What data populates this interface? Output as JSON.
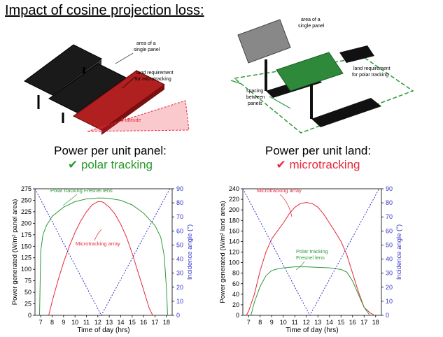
{
  "title": "Impact of cosine projection loss:",
  "left_illustration": {
    "callouts": [
      "area of a single panel",
      "land requirement for microtracking",
      "θ latitude"
    ]
  },
  "right_illustration": {
    "callouts": [
      "area of a single panel",
      "land requirement for polar tracking",
      "spacing between panels"
    ]
  },
  "left_heading": {
    "line1": "Power per unit panel:",
    "check": "✔",
    "line2": "polar tracking",
    "color": "#2a9a2a"
  },
  "right_heading": {
    "line1": "Power per unit land:",
    "check": "✔",
    "line2": "microtracking",
    "color": "#e8283a"
  },
  "chart_data": [
    {
      "type": "line",
      "xlabel": "Time of day (hrs)",
      "ylabel": "Power generated (W/m² panel area)",
      "y2label": "Incidence angle (°)",
      "xlim": [
        6.5,
        18.5
      ],
      "ylim": [
        0,
        275
      ],
      "y2lim": [
        0,
        90
      ],
      "xticks": [
        7,
        8,
        9,
        10,
        11,
        12,
        13,
        14,
        15,
        16,
        17,
        18
      ],
      "yticks": [
        0,
        25,
        50,
        75,
        100,
        125,
        150,
        175,
        200,
        225,
        250,
        275
      ],
      "y2ticks": [
        0,
        10,
        20,
        30,
        40,
        50,
        60,
        70,
        80,
        90
      ],
      "series": [
        {
          "name": "Polar tracking Fresnel lens",
          "color": "#2e9a3a",
          "x": [
            6.9,
            7.0,
            7.2,
            7.5,
            8,
            9,
            10,
            11,
            12,
            12.5,
            13,
            14,
            15,
            16,
            17,
            17.5,
            17.8,
            18.0,
            18.1
          ],
          "y": [
            0,
            140,
            175,
            195,
            215,
            235,
            247,
            253,
            255,
            255,
            254,
            250,
            240,
            222,
            195,
            170,
            130,
            60,
            0
          ]
        },
        {
          "name": "Microtracking array",
          "color": "#e8283a",
          "x": [
            7.7,
            8,
            8.5,
            9,
            9.5,
            10,
            10.5,
            11,
            11.5,
            12,
            12.3,
            12.5,
            13,
            13.5,
            14,
            14.5,
            15,
            15.5,
            16,
            16.5,
            16.8
          ],
          "y": [
            0,
            30,
            75,
            115,
            150,
            180,
            205,
            225,
            240,
            247,
            247,
            245,
            235,
            220,
            198,
            170,
            135,
            95,
            55,
            15,
            0
          ]
        },
        {
          "name": "",
          "color": "#3333cc",
          "axis": "y2",
          "dashed": true,
          "x": [
            6.5,
            12.3,
            18.3
          ],
          "y": [
            90,
            0,
            90
          ]
        }
      ],
      "annotations": [
        "Polar tracking Fresnel lens",
        "Microtracking array"
      ]
    },
    {
      "type": "line",
      "xlabel": "Time of day (hrs)",
      "ylabel": "Power generated (W/m² land area)",
      "y2label": "Incidence angle (°)",
      "xlim": [
        6.5,
        18.5
      ],
      "ylim": [
        0,
        240
      ],
      "y2lim": [
        0,
        90
      ],
      "xticks": [
        7,
        8,
        9,
        10,
        11,
        12,
        13,
        14,
        15,
        16,
        17,
        18
      ],
      "yticks": [
        0,
        20,
        40,
        60,
        80,
        100,
        120,
        140,
        160,
        180,
        200,
        220,
        240
      ],
      "y2ticks": [
        0,
        10,
        20,
        30,
        40,
        50,
        60,
        70,
        80,
        90
      ],
      "series": [
        {
          "name": "Microtracking array",
          "color": "#e8283a",
          "x": [
            6.8,
            7,
            7.5,
            8,
            8.5,
            9,
            9.5,
            10,
            10.5,
            11,
            11.5,
            12,
            12.5,
            13,
            13.5,
            14,
            14.5,
            15,
            15.5,
            16,
            16.5,
            17,
            17.5,
            17.9
          ],
          "y": [
            0,
            8,
            40,
            85,
            120,
            145,
            160,
            175,
            192,
            205,
            212,
            214,
            212,
            205,
            192,
            175,
            158,
            140,
            115,
            80,
            45,
            15,
            5,
            0
          ]
        },
        {
          "name": "Polar tracking Fresnel lens",
          "color": "#2e9a3a",
          "x": [
            7.2,
            7.5,
            8,
            8.5,
            9,
            9.5,
            10,
            11,
            12,
            13,
            14,
            15,
            15.5,
            16,
            16.5,
            17,
            17.5
          ],
          "y": [
            0,
            25,
            55,
            75,
            85,
            88,
            90,
            92,
            92,
            91,
            90,
            87,
            82,
            65,
            40,
            15,
            0
          ]
        },
        {
          "name": "",
          "color": "#3333cc",
          "axis": "y2",
          "dashed": true,
          "x": [
            6.5,
            12.3,
            18.3
          ],
          "y": [
            90,
            0,
            90
          ]
        }
      ],
      "annotations": [
        "Microtracking array",
        "Polar tracking Fresnel lens"
      ]
    }
  ]
}
